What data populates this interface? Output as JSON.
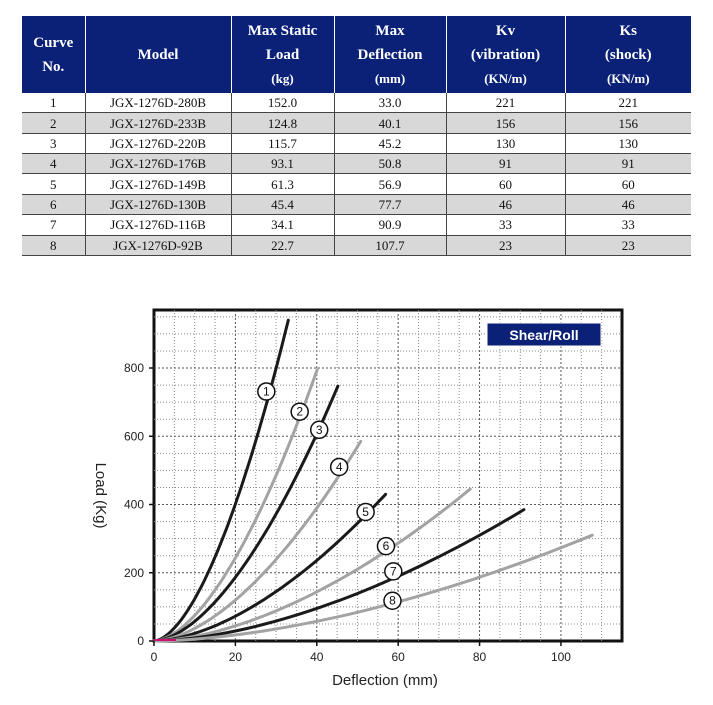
{
  "table": {
    "headers": [
      {
        "lines": [
          "Curve",
          "No."
        ]
      },
      {
        "lines": [
          "Model"
        ]
      },
      {
        "lines": [
          "Max Static",
          "Load",
          "(kg)"
        ]
      },
      {
        "lines": [
          "Max",
          "Deflection",
          "(mm)"
        ]
      },
      {
        "lines": [
          "Kv",
          "(vibration)",
          "(KN/m)"
        ]
      },
      {
        "lines": [
          "Ks",
          "(shock)",
          "(KN/m)"
        ]
      }
    ],
    "rows": [
      [
        "1",
        "JGX-1276D-280B",
        "152.0",
        "33.0",
        "221",
        "221"
      ],
      [
        "2",
        "JGX-1276D-233B",
        "124.8",
        "40.1",
        "156",
        "156"
      ],
      [
        "3",
        "JGX-1276D-220B",
        "115.7",
        "45.2",
        "130",
        "130"
      ],
      [
        "4",
        "JGX-1276D-176B",
        "93.1",
        "50.8",
        "91",
        "91"
      ],
      [
        "5",
        "JGX-1276D-149B",
        "61.3",
        "56.9",
        "60",
        "60"
      ],
      [
        "6",
        "JGX-1276D-130B",
        "45.4",
        "77.7",
        "46",
        "46"
      ],
      [
        "7",
        "JGX-1276D-116B",
        "34.1",
        "90.9",
        "33",
        "33"
      ],
      [
        "8",
        "JGX-1276D-92B",
        "22.7",
        "107.7",
        "23",
        "23"
      ]
    ]
  },
  "chart_data": {
    "type": "line",
    "title": "Shear/Roll",
    "xlabel": "Deflection (mm)",
    "ylabel": "Load (Kg)",
    "xlim": [
      0,
      115
    ],
    "ylim": [
      0,
      970
    ],
    "xticks": [
      "0",
      "20",
      "40",
      "60",
      "80",
      "100"
    ],
    "yticks": [
      "0",
      "200",
      "400",
      "600",
      "800"
    ],
    "grid": true,
    "colors": {
      "dark": "#1a1a1a",
      "light": "#a3a3a3",
      "badge": "#0a2177",
      "origin": "#d01070"
    },
    "series": [
      {
        "name": "1",
        "color": "dark",
        "end": [
          33.0,
          940
        ],
        "marker": [
          27.6,
          731
        ]
      },
      {
        "name": "2",
        "color": "light",
        "end": [
          40.1,
          795
        ],
        "marker": [
          35.8,
          672
        ]
      },
      {
        "name": "3",
        "color": "dark",
        "end": [
          45.2,
          747
        ],
        "marker": [
          40.6,
          619
        ]
      },
      {
        "name": "4",
        "color": "light",
        "end": [
          50.8,
          585
        ],
        "marker": [
          45.5,
          510
        ]
      },
      {
        "name": "5",
        "color": "dark",
        "end": [
          56.9,
          430
        ],
        "marker": [
          52.0,
          378
        ]
      },
      {
        "name": "6",
        "color": "light",
        "end": [
          77.7,
          445
        ],
        "marker": [
          57.0,
          278
        ]
      },
      {
        "name": "7",
        "color": "dark",
        "end": [
          90.9,
          385
        ],
        "marker": [
          58.8,
          204
        ]
      },
      {
        "name": "8",
        "color": "light",
        "end": [
          107.7,
          310
        ],
        "marker": [
          58.6,
          118
        ]
      }
    ]
  }
}
